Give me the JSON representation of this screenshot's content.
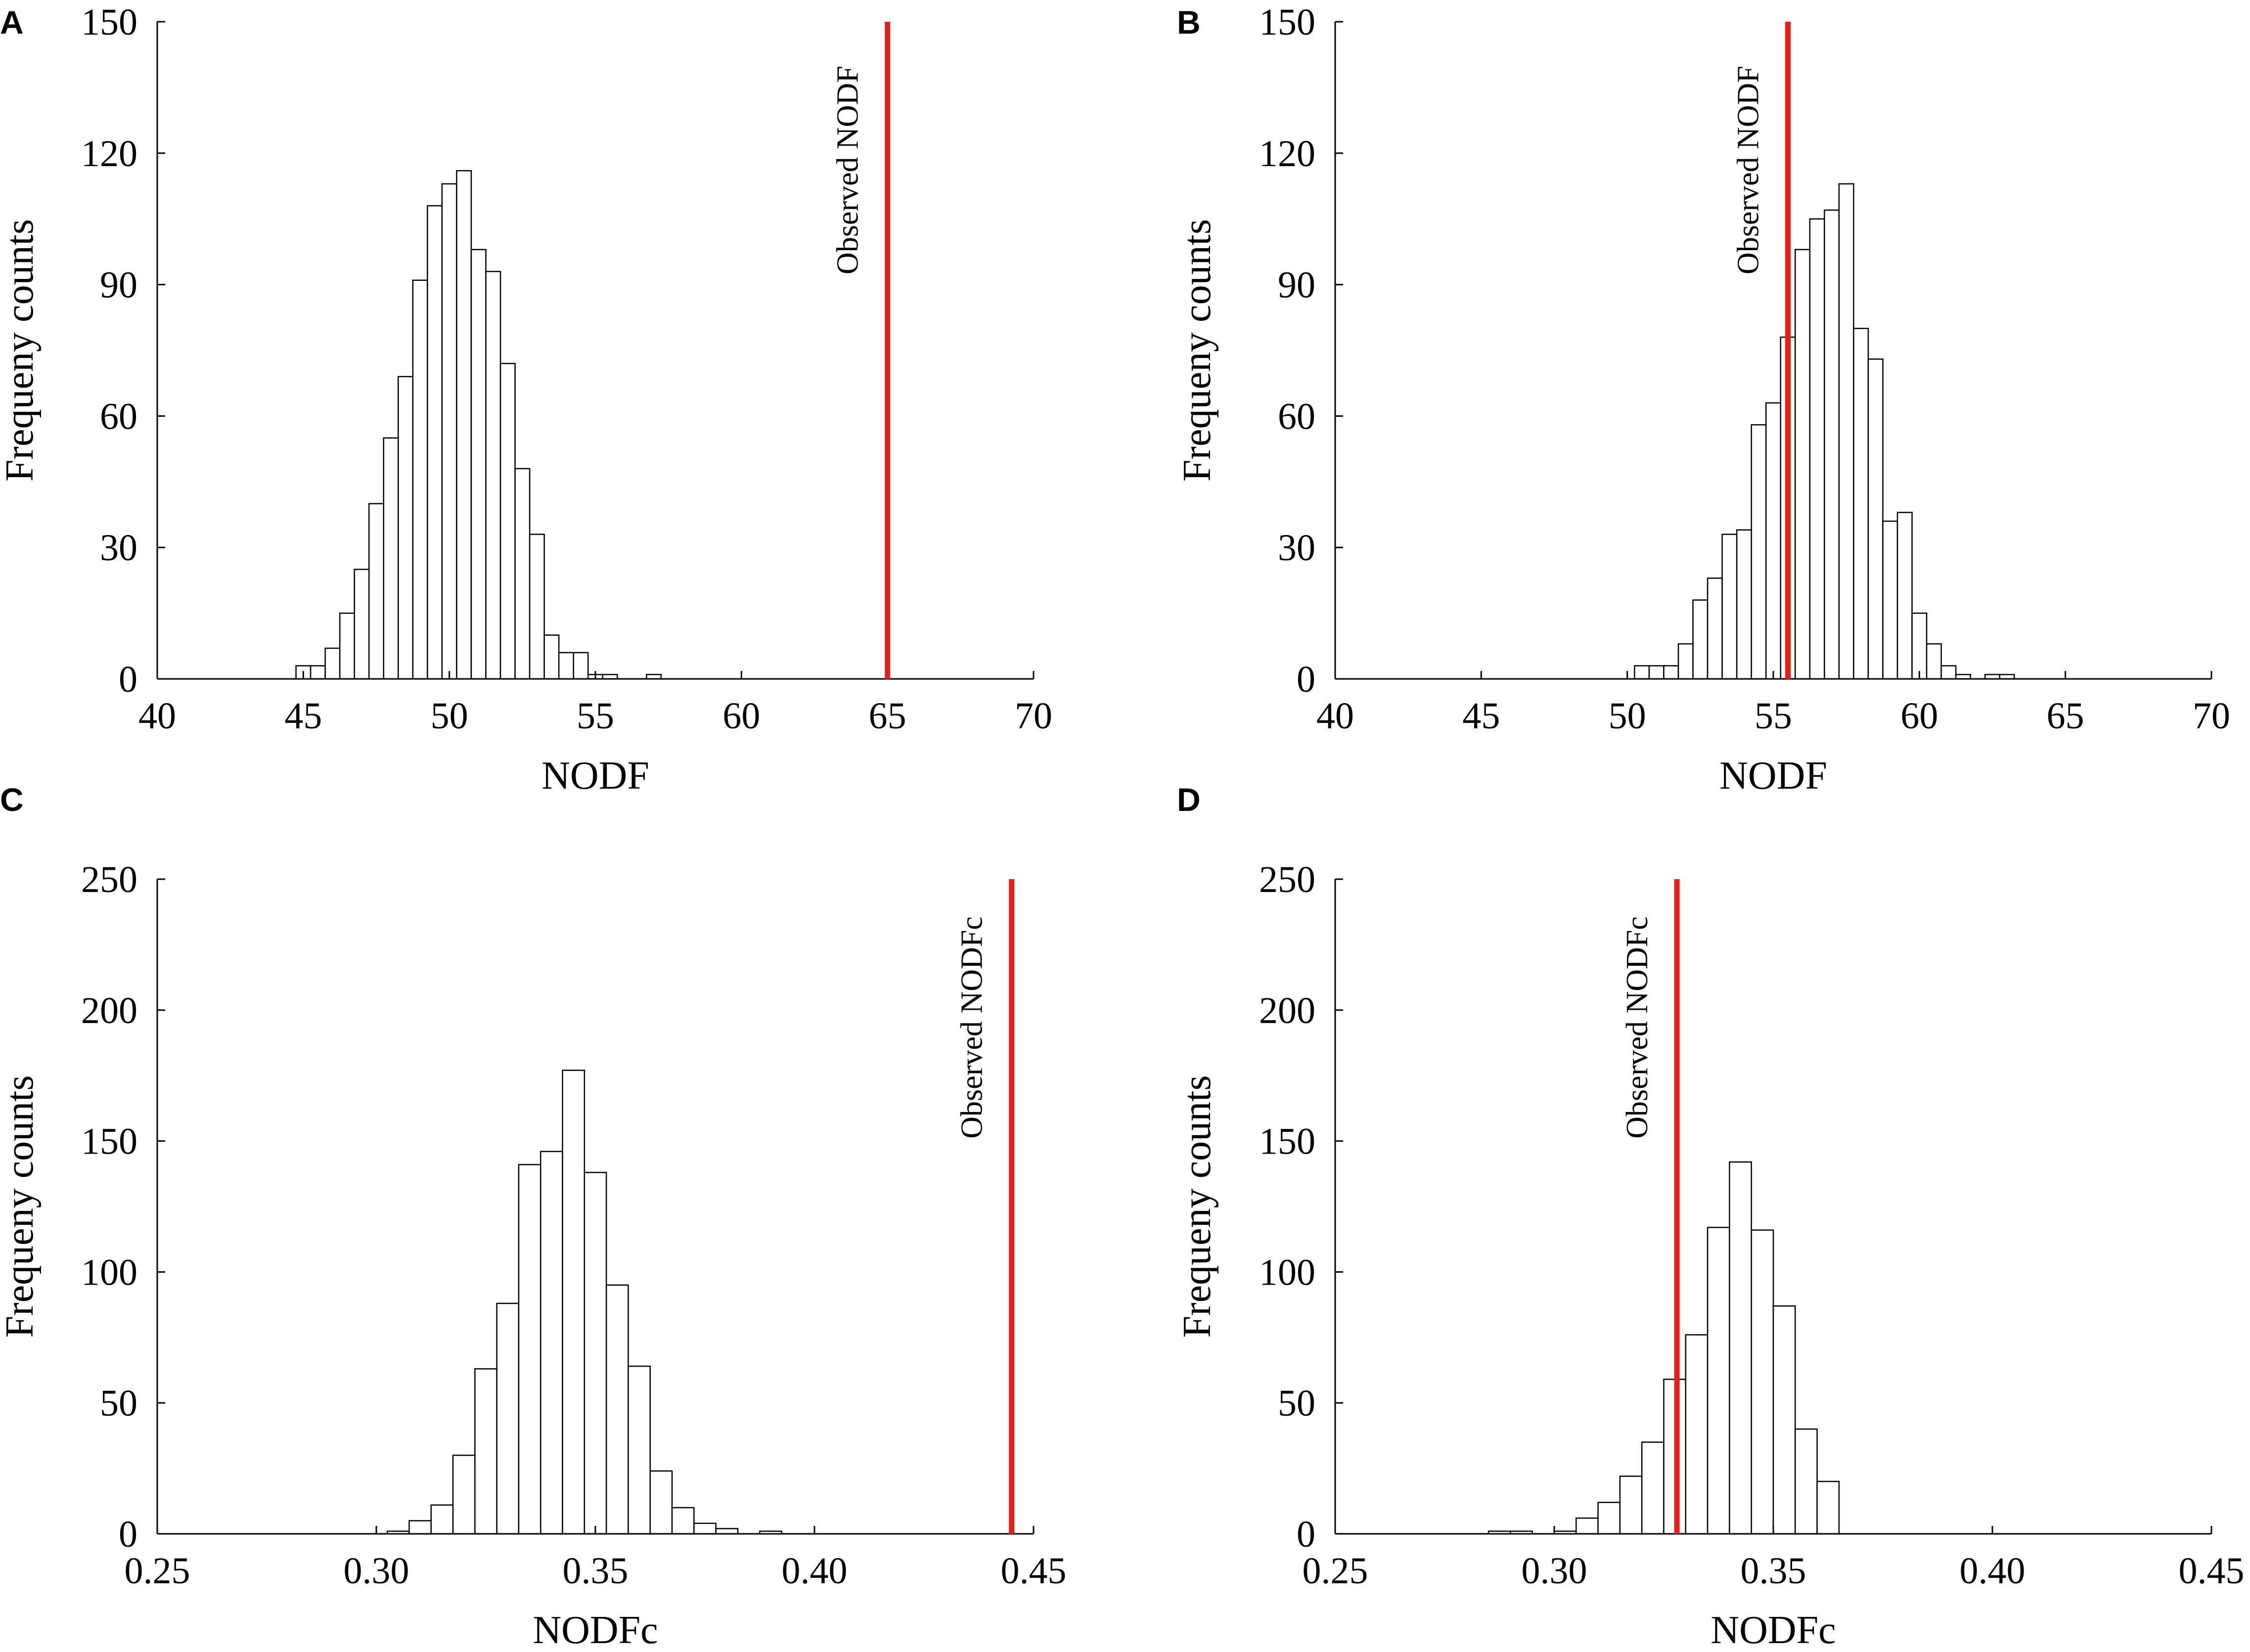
{
  "colors": {
    "observed_line": "#e3201b",
    "bar_stroke": "#000000",
    "axis": "#000000",
    "background": "#ffffff"
  },
  "chart_data": [
    {
      "panel": "A",
      "type": "bar",
      "subtype": "histogram",
      "xlabel": "NODF",
      "ylabel": "Frequeny counts",
      "xlim": [
        40,
        70
      ],
      "ylim": [
        0,
        150
      ],
      "xticks": [
        "40",
        "45",
        "50",
        "55",
        "60",
        "65",
        "70"
      ],
      "xtick_values": [
        40,
        45,
        50,
        55,
        60,
        65,
        70
      ],
      "yticks": [
        "0",
        "30",
        "60",
        "90",
        "120",
        "150"
      ],
      "ytick_values": [
        0,
        30,
        60,
        90,
        120,
        150
      ],
      "bin_width": 0.5,
      "bin_starts": [
        44.75,
        45.25,
        45.75,
        46.25,
        46.75,
        47.25,
        47.75,
        48.25,
        48.75,
        49.25,
        49.75,
        50.25,
        50.75,
        51.25,
        51.75,
        52.25,
        52.75,
        53.25,
        53.75,
        54.25,
        54.75,
        55.25,
        56.75
      ],
      "values": [
        3,
        3,
        7,
        15,
        25,
        40,
        55,
        69,
        91,
        108,
        113,
        116,
        98,
        93,
        72,
        48,
        33,
        10,
        6,
        6,
        1,
        1,
        1
      ],
      "observed_value": 65,
      "observed_label": "Observed NODF"
    },
    {
      "panel": "B",
      "type": "bar",
      "subtype": "histogram",
      "xlabel": "NODF",
      "ylabel": "Frequeny counts",
      "xlim": [
        40,
        70
      ],
      "ylim": [
        0,
        150
      ],
      "xticks": [
        "40",
        "45",
        "50",
        "55",
        "60",
        "65",
        "70"
      ],
      "xtick_values": [
        40,
        45,
        50,
        55,
        60,
        65,
        70
      ],
      "yticks": [
        "0",
        "30",
        "60",
        "90",
        "120",
        "150"
      ],
      "ytick_values": [
        0,
        30,
        60,
        90,
        120,
        150
      ],
      "bin_width": 0.5,
      "bin_starts": [
        50.25,
        50.75,
        51.25,
        51.75,
        52.25,
        52.75,
        53.25,
        53.75,
        54.25,
        54.75,
        55.25,
        55.75,
        56.25,
        56.75,
        57.25,
        57.75,
        58.25,
        58.75,
        59.25,
        59.75,
        60.25,
        60.75,
        61.25,
        62.25,
        62.75
      ],
      "values": [
        3,
        3,
        3,
        8,
        18,
        23,
        33,
        34,
        58,
        63,
        78,
        98,
        105,
        107,
        113,
        80,
        73,
        36,
        38,
        15,
        8,
        3,
        1,
        1,
        1
      ],
      "observed_value": 55.5,
      "observed_label": "Observed NODF"
    },
    {
      "panel": "C",
      "type": "bar",
      "subtype": "histogram",
      "xlabel": "NODFc",
      "ylabel": "Frequeny counts",
      "xlim": [
        0.25,
        0.45
      ],
      "ylim": [
        0,
        250
      ],
      "xticks": [
        "0.25",
        "0.30",
        "0.35",
        "0.40",
        "0.45"
      ],
      "xtick_values": [
        0.25,
        0.3,
        0.35,
        0.4,
        0.45
      ],
      "yticks": [
        "0",
        "50",
        "100",
        "150",
        "200",
        "250"
      ],
      "ytick_values": [
        0,
        50,
        100,
        150,
        200,
        250
      ],
      "bin_width": 0.005,
      "bin_starts": [
        0.3025,
        0.3075,
        0.3125,
        0.3175,
        0.3225,
        0.3275,
        0.3325,
        0.3375,
        0.3425,
        0.3475,
        0.3525,
        0.3575,
        0.3625,
        0.3675,
        0.3725,
        0.3775,
        0.3875
      ],
      "values": [
        1,
        5,
        11,
        30,
        63,
        88,
        141,
        146,
        177,
        138,
        95,
        64,
        24,
        10,
        4,
        2,
        1
      ],
      "observed_value": 0.445,
      "observed_label": "Observed NODFc"
    },
    {
      "panel": "D",
      "type": "bar",
      "subtype": "histogram",
      "xlabel": "NODFc",
      "ylabel": "Frequeny counts",
      "xlim": [
        0.25,
        0.45
      ],
      "ylim": [
        0,
        250
      ],
      "xticks": [
        "0.25",
        "0.30",
        "0.35",
        "0.40",
        "0.45"
      ],
      "xtick_values": [
        0.25,
        0.3,
        0.35,
        0.4,
        0.45
      ],
      "yticks": [
        "0",
        "50",
        "100",
        "150",
        "200",
        "250"
      ],
      "ytick_values": [
        0,
        50,
        100,
        150,
        200,
        250
      ],
      "bin_width": 0.005,
      "bin_starts": [
        0.285,
        0.29,
        0.3,
        0.305,
        0.31,
        0.315,
        0.32,
        0.325,
        0.33,
        0.335,
        0.34,
        0.345,
        0.35,
        0.355,
        0.36
      ],
      "values": [
        1,
        1,
        1,
        6,
        12,
        22,
        35,
        59,
        76,
        117,
        142,
        116,
        87,
        40,
        20
      ],
      "observed_value": 0.328,
      "observed_label": "Observed NODFc"
    }
  ]
}
